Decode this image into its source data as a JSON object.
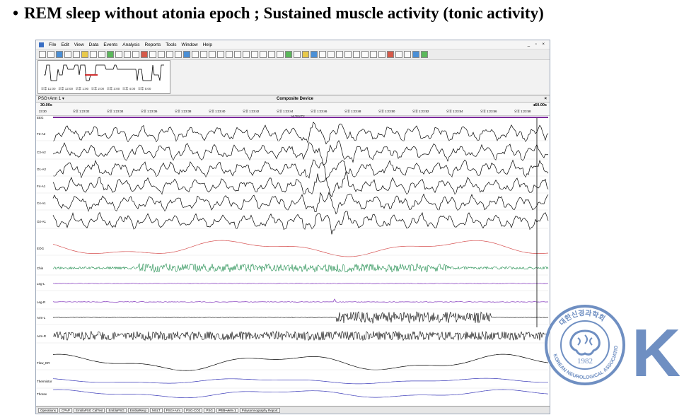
{
  "slide": {
    "bullet": "•",
    "title": "REM sleep without atonia epoch ; Sustained muscle activity (tonic activity)"
  },
  "app": {
    "menu": [
      "File",
      "Edit",
      "View",
      "Data",
      "Events",
      "Analysis",
      "Reports",
      "Tools",
      "Window",
      "Help"
    ],
    "window_buttons": "_ ▫ ×",
    "overview_times": [
      "오후 11:00",
      "오후 12:00",
      "오후 1:00",
      "오후 2:00",
      "오후 3:00",
      "오후 4:00",
      "오후 5:00"
    ],
    "panel": {
      "montage": "PSG+Arm 1 ▾",
      "device": "Composite Device",
      "close": "×",
      "epoch_length": "30.00s",
      "epoch_length_right": "◂60.00s",
      "time_ticks": [
        "23:30",
        "오후 1:23:32",
        "오후 1:23:34",
        "오후 1:23:36",
        "오후 1:23:38",
        "오후 1:23:40",
        "오후 1:23:42",
        "오후 1:23:44",
        "오후 1:23:46",
        "오후 1:23:48",
        "오후 1:23:50",
        "오후 1:23:52",
        "오후 1:23:54",
        "오후 1:23:56",
        "오후 1:23:58"
      ],
      "event_marker": "각(제정원)"
    },
    "channels": [
      {
        "label": "EEG",
        "color": "#7a2a9a"
      },
      {
        "label": "F3-A2",
        "color": "#000000"
      },
      {
        "label": "C3-A2",
        "color": "#000000"
      },
      {
        "label": "O1-A2",
        "color": "#000000"
      },
      {
        "label": "F4-A1",
        "color": "#000000"
      },
      {
        "label": "C4-A1",
        "color": "#000000"
      },
      {
        "label": "O2-A1",
        "color": "#000000"
      },
      {
        "label": "EOG",
        "color": "#d65050"
      },
      {
        "label": "Chin",
        "color": "#1a8a4a"
      },
      {
        "label": "Leg-L",
        "color": "#7a2ab8"
      },
      {
        "label": "Leg-R",
        "color": "#7a2ab8"
      },
      {
        "label": "Arm-L",
        "color": "#000000"
      },
      {
        "label": "Arm-R",
        "color": "#000000"
      },
      {
        "label": "Flow_DR",
        "color": "#000000"
      },
      {
        "label": "Thermistor",
        "color": "#3a3ab8"
      },
      {
        "label": "Thorax",
        "color": "#3a3ab8"
      }
    ],
    "scale_labels": [
      "60.0 µV/cm",
      "LE",
      "RE",
      "24.0 µV/cm",
      "0.25"
    ],
    "tabs": [
      "Operations",
      "CPAP",
      "EmblaPSG CalTest",
      "EmblaPSG",
      "EmblaResp",
      "MSLT",
      "PSG+Arm",
      "PSG-CO2",
      "PSG",
      "PSG+Arm 1",
      "Polysomnography Report"
    ],
    "active_tab": "PSG+Arm 1"
  },
  "logo": {
    "center_text": "1982",
    "ring_text_top": "대한신경과학회",
    "ring_text_bottom": "KOREAN NEUROLOGICAL ASSOCIATION",
    "side_letter": "K",
    "color": "#6f8fc2"
  }
}
